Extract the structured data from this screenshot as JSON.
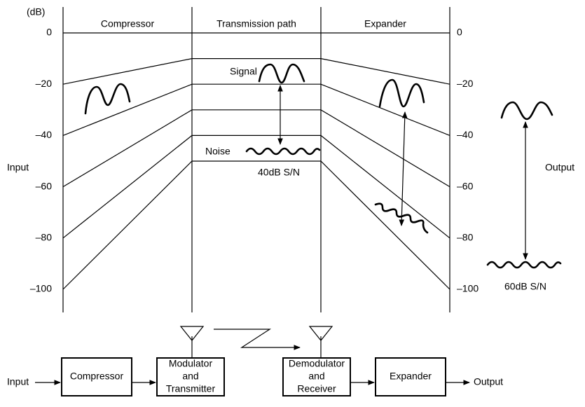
{
  "header": {
    "unit": "(dB)"
  },
  "columns": [
    "Compressor",
    "Transmission path",
    "Expander"
  ],
  "left_scale": [
    "0",
    "–20",
    "–40",
    "–60",
    "–80",
    "–100"
  ],
  "right_scale": [
    "0",
    "–20",
    "–40",
    "–60",
    "–80",
    "–100"
  ],
  "labels": {
    "input": "Input",
    "output": "Output",
    "signal": "Signal",
    "noise": "Noise",
    "sn_transmission": "40dB S/N",
    "sn_output": "60dB S/N"
  },
  "blocks": [
    [
      "Compressor"
    ],
    [
      "Modulator",
      "and",
      "Transmitter"
    ],
    [
      "Demodulator",
      "and",
      "Receiver"
    ],
    [
      "Expander"
    ]
  ],
  "flow": {
    "input": "Input",
    "output": "Output"
  }
}
